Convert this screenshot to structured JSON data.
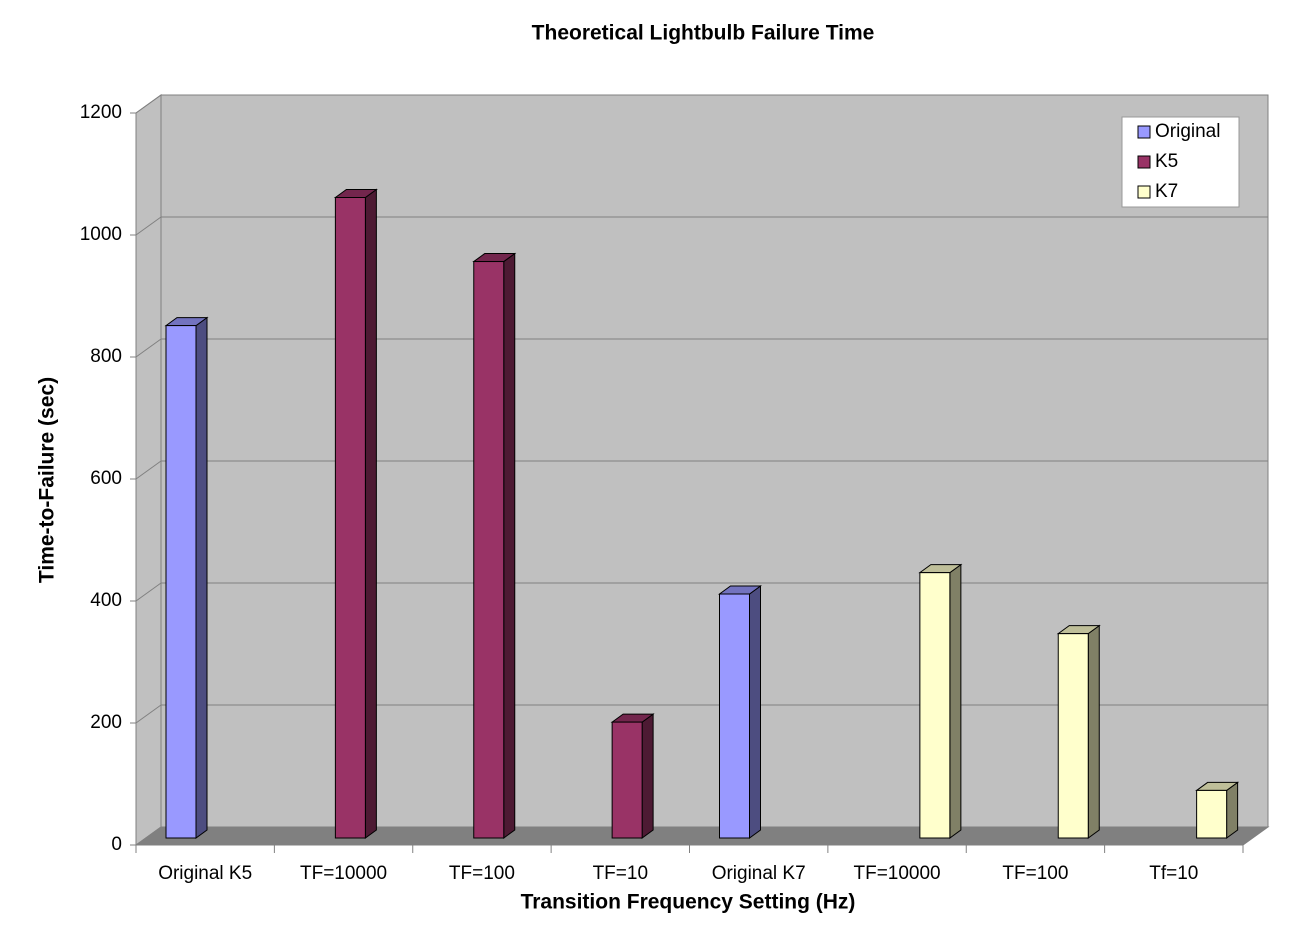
{
  "chart_data": {
    "type": "bar3d",
    "title": "Theoretical Lightbulb Failure Time",
    "x_label": "Transition Frequency Setting (Hz)",
    "y_label": "Time-to-Failure (sec)",
    "categories": [
      "Original K5",
      "TF=10000",
      "TF=100",
      "TF=10",
      "Original K7",
      "TF=10000",
      "TF=100",
      "Tf=10"
    ],
    "series": [
      {
        "name": "Original",
        "color": "#9999ff",
        "values": [
          840,
          null,
          null,
          null,
          400,
          null,
          null,
          null
        ]
      },
      {
        "name": "K5",
        "color": "#993366",
        "values": [
          null,
          1050,
          945,
          190,
          null,
          null,
          null,
          null
        ]
      },
      {
        "name": "K7",
        "color": "#ffffcc",
        "values": [
          null,
          null,
          null,
          null,
          null,
          435,
          335,
          78
        ]
      }
    ],
    "ylim": [
      0,
      1200
    ],
    "yticks": [
      0,
      200,
      400,
      600,
      800,
      1000,
      1200
    ],
    "grid": true,
    "legend": "top-right"
  }
}
